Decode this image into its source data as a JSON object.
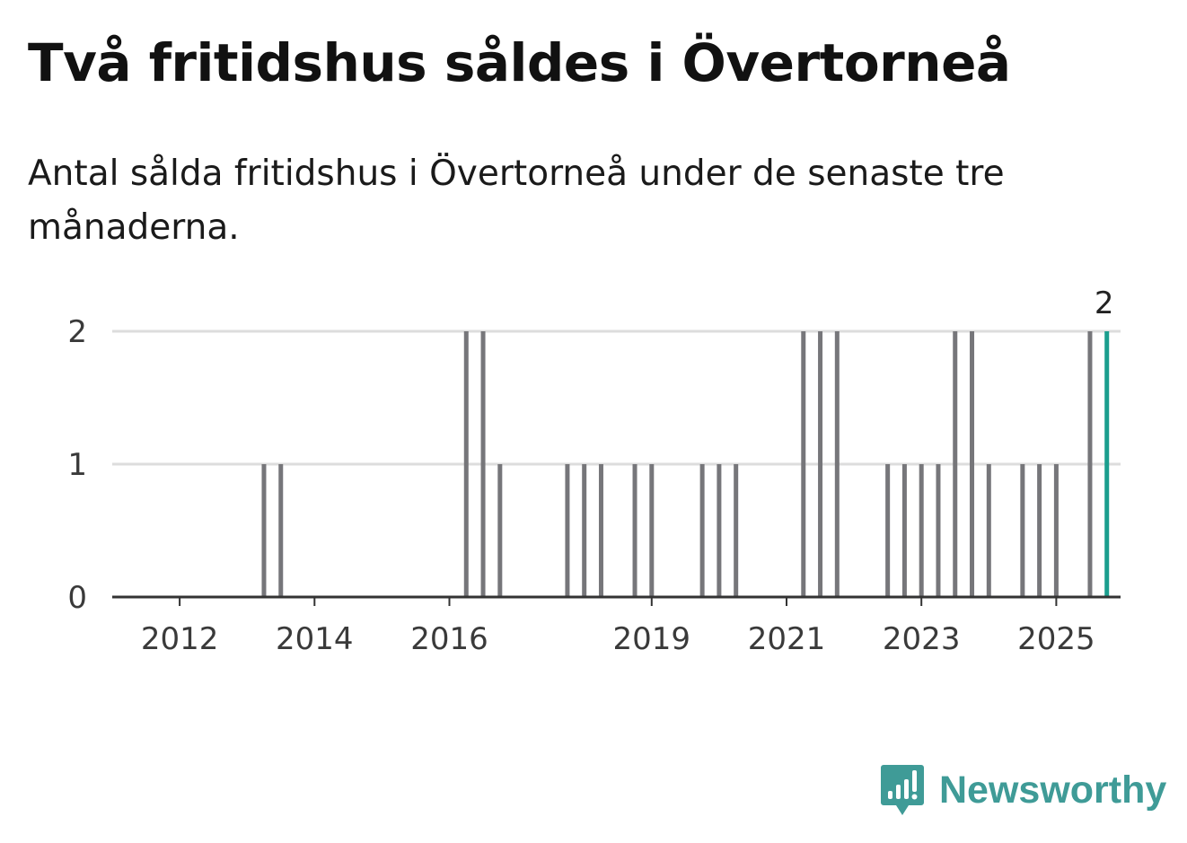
{
  "title": "Två fritidshus såldes i Övertorneå",
  "subtitle": "Antal sålda fritidshus i Övertorneå under de senaste tre månaderna.",
  "brand": {
    "name": "Newsworthy",
    "icon": "newsworthy-logo-icon",
    "color": "#3f9b97"
  },
  "chart_data": {
    "type": "bar",
    "title": "Två fritidshus såldes i Övertorneå",
    "xlabel": "",
    "ylabel": "",
    "ylim": [
      0,
      2
    ],
    "yticks": [
      0,
      1,
      2
    ],
    "grid": true,
    "xticks": [
      "2012",
      "2014",
      "2016",
      "2019",
      "2021",
      "2023",
      "2025"
    ],
    "colors": {
      "bar": "#76767a",
      "highlight": "#1b9e8e",
      "grid": "#dddddd",
      "axis": "#333333"
    },
    "period": "quarter",
    "categories": [
      "2013 Q4",
      "2014 Q1",
      "2016 Q4",
      "2017 Q1",
      "2017 Q2",
      "2018 Q2",
      "2018 Q3",
      "2018 Q4",
      "2019 Q2",
      "2019 Q3",
      "2020 Q2",
      "2020 Q3",
      "2020 Q4",
      "2021 Q4",
      "2022 Q1",
      "2022 Q2",
      "2023 Q1",
      "2023 Q2",
      "2023 Q3",
      "2023 Q4",
      "2024 Q1",
      "2024 Q2",
      "2024 Q3",
      "2025 Q1",
      "2025 Q2",
      "2025 Q3",
      "2026 Q1",
      "2026 Q2"
    ],
    "values": [
      1,
      1,
      2,
      2,
      1,
      1,
      1,
      1,
      1,
      1,
      1,
      1,
      1,
      2,
      2,
      2,
      1,
      1,
      1,
      1,
      2,
      2,
      1,
      1,
      1,
      1,
      2,
      2
    ],
    "highlight_index": 27,
    "highlight_label": "2"
  }
}
